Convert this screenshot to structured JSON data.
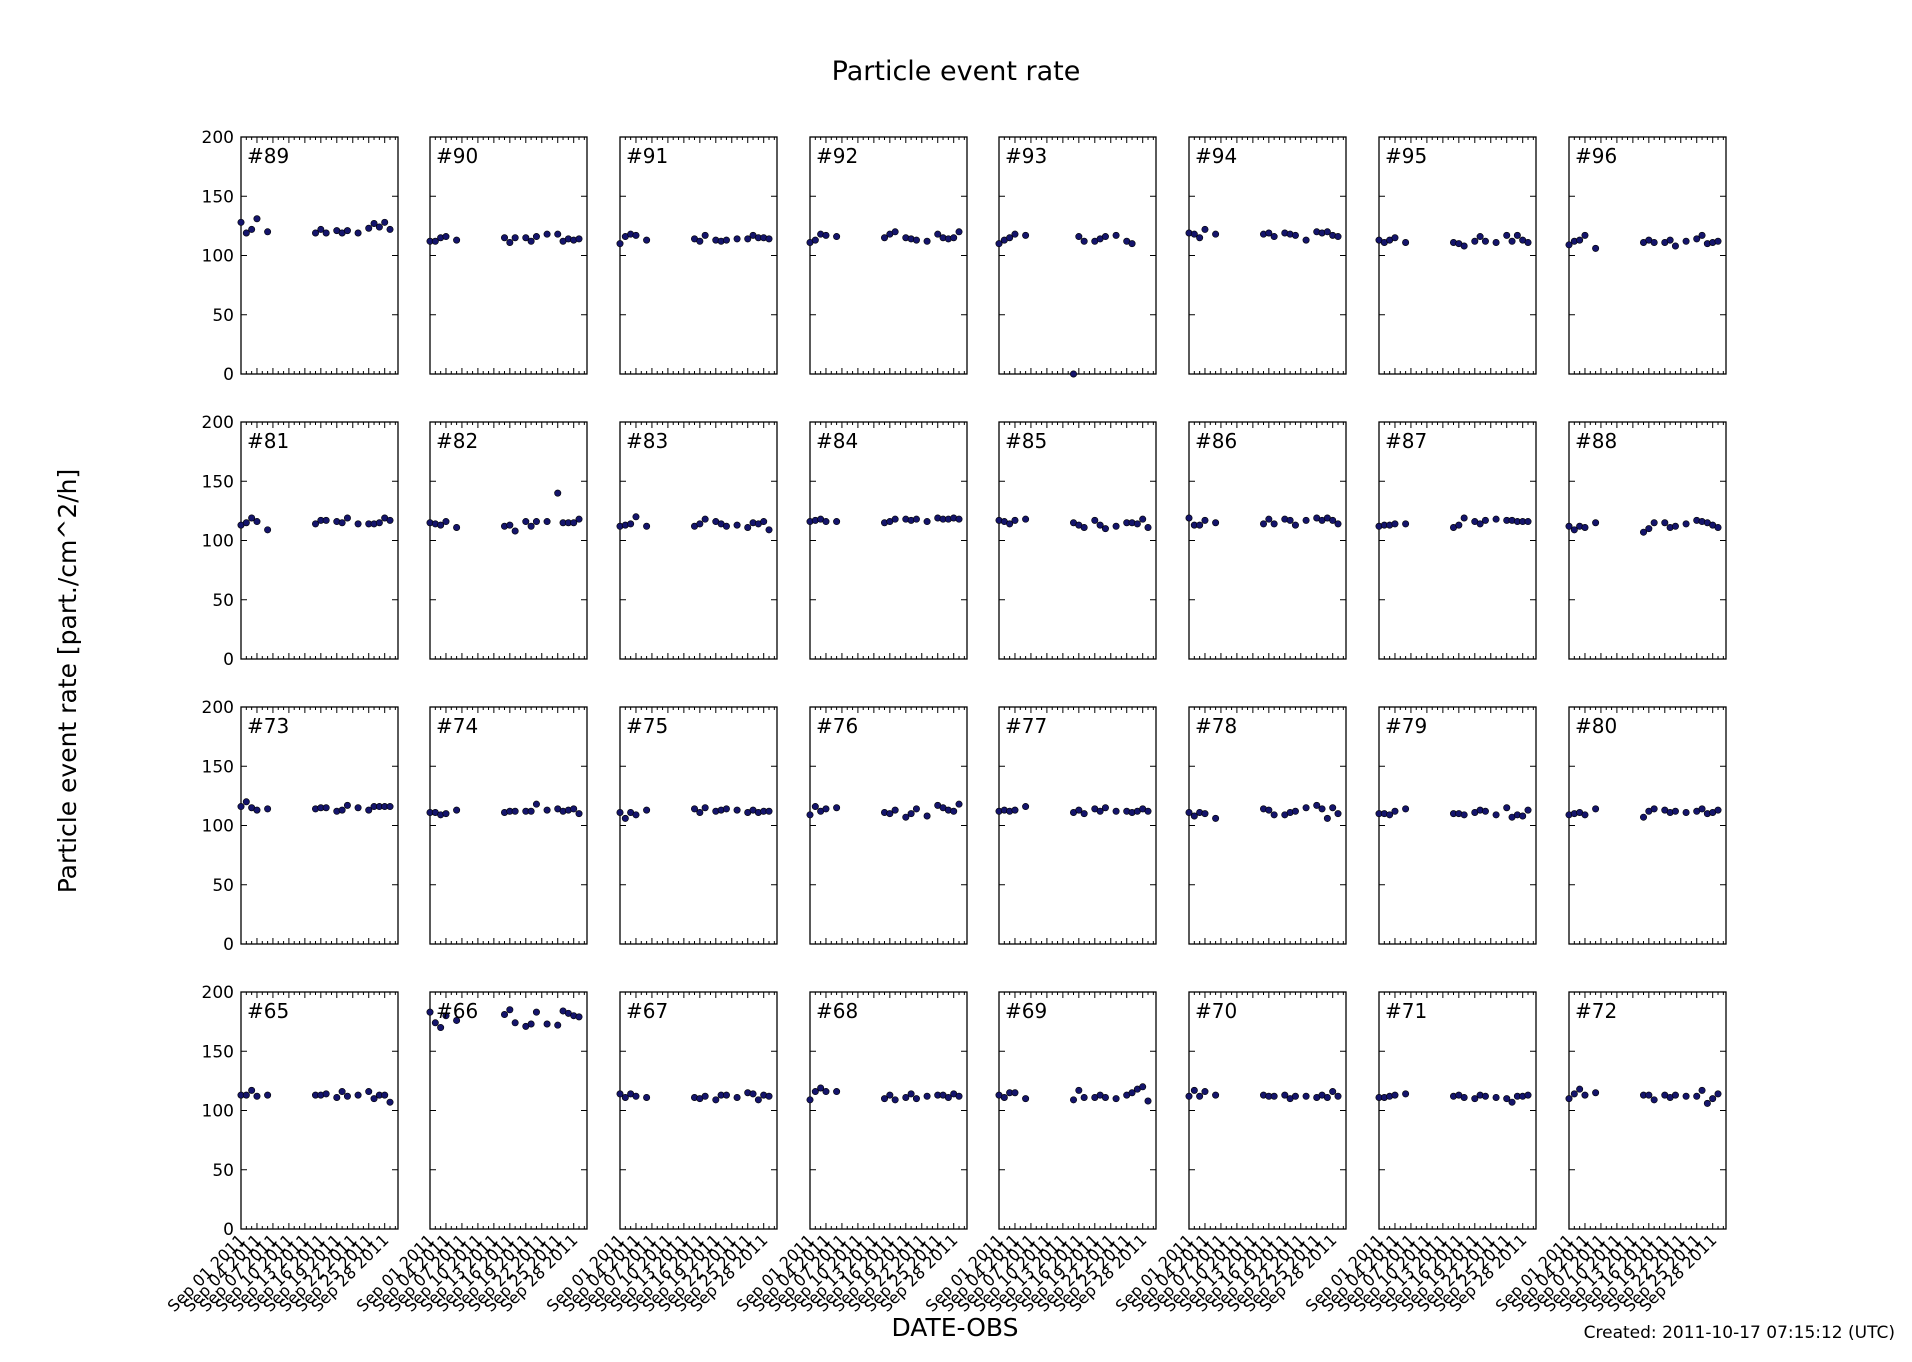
{
  "chart_data": {
    "type": "scatter",
    "title": "Particle event rate",
    "xlabel": "DATE-OBS",
    "ylabel": "Particle event rate [part./cm^2/h]",
    "footer": "Created: 2011-10-17 07:15:12 (UTC)",
    "ylim": [
      0,
      200
    ],
    "yticks": [
      0,
      50,
      100,
      150,
      200
    ],
    "xlim_day": [
      1,
      30.5
    ],
    "xtick_labels": [
      "Sep 01 2011",
      "Sep 04 2011",
      "Sep 07 2011",
      "Sep 10 2011",
      "Sep 13 2011",
      "Sep 16 2011",
      "Sep 19 2011",
      "Sep 22 2011",
      "Sep 25 2011",
      "Sep 28 2011"
    ],
    "xtick_days": [
      1,
      4,
      7,
      10,
      13,
      16,
      19,
      22,
      25,
      28
    ],
    "day": [
      1,
      2,
      3,
      4,
      6,
      14,
      15,
      16,
      17,
      19,
      20,
      21,
      23,
      25,
      26,
      27,
      28,
      29
    ],
    "grid": false,
    "marker_color": "#14146b",
    "panels": [
      {
        "label": "#89",
        "values": [
          128,
          119,
          122,
          131,
          120,
          null,
          119,
          122,
          119,
          121,
          119,
          121,
          119,
          123,
          127,
          124,
          128,
          122
        ]
      },
      {
        "label": "#90",
        "values": [
          112,
          112,
          115,
          116,
          113,
          null,
          115,
          111,
          115,
          115,
          112,
          116,
          118,
          118,
          112,
          114,
          113,
          114
        ]
      },
      {
        "label": "#91",
        "values": [
          110,
          116,
          118,
          117,
          113,
          null,
          114,
          112,
          117,
          113,
          112,
          113,
          114,
          114,
          117,
          115,
          115,
          114
        ]
      },
      {
        "label": "#92",
        "values": [
          111,
          113,
          118,
          117,
          116,
          null,
          115,
          118,
          120,
          115,
          114,
          113,
          112,
          118,
          115,
          114,
          115,
          120
        ]
      },
      {
        "label": "#93",
        "values": [
          110,
          113,
          115,
          118,
          117,
          null,
          0,
          116,
          112,
          112,
          114,
          116,
          117,
          112,
          110,
          null,
          null,
          null
        ]
      },
      {
        "label": "#94",
        "values": [
          119,
          118,
          115,
          122,
          118,
          null,
          118,
          119,
          116,
          119,
          118,
          117,
          113,
          120,
          119,
          120,
          117,
          116
        ]
      },
      {
        "label": "#95",
        "values": [
          113,
          111,
          113,
          115,
          111,
          null,
          111,
          110,
          108,
          112,
          116,
          112,
          111,
          117,
          112,
          117,
          113,
          111
        ]
      },
      {
        "label": "#96",
        "values": [
          109,
          112,
          113,
          117,
          106,
          null,
          111,
          113,
          111,
          111,
          113,
          108,
          112,
          114,
          117,
          110,
          111,
          112
        ]
      },
      {
        "label": "#81",
        "values": [
          113,
          115,
          119,
          116,
          109,
          null,
          114,
          117,
          117,
          116,
          115,
          119,
          114,
          114,
          114,
          115,
          119,
          117
        ]
      },
      {
        "label": "#82",
        "values": [
          115,
          114,
          113,
          116,
          111,
          null,
          112,
          113,
          108,
          116,
          112,
          116,
          116,
          140,
          115,
          115,
          115,
          118
        ]
      },
      {
        "label": "#83",
        "values": [
          112,
          113,
          114,
          120,
          112,
          null,
          112,
          114,
          118,
          116,
          114,
          112,
          113,
          111,
          115,
          114,
          116,
          109
        ]
      },
      {
        "label": "#84",
        "values": [
          116,
          117,
          118,
          116,
          116,
          null,
          115,
          116,
          118,
          118,
          117,
          118,
          116,
          119,
          118,
          118,
          119,
          118
        ]
      },
      {
        "label": "#85",
        "values": [
          117,
          116,
          114,
          117,
          118,
          null,
          115,
          113,
          111,
          117,
          113,
          110,
          112,
          115,
          115,
          114,
          118,
          111
        ]
      },
      {
        "label": "#86",
        "values": [
          119,
          113,
          113,
          117,
          115,
          null,
          114,
          118,
          114,
          118,
          117,
          113,
          117,
          119,
          117,
          119,
          117,
          114
        ]
      },
      {
        "label": "#87",
        "values": [
          112,
          113,
          113,
          114,
          114,
          null,
          111,
          113,
          119,
          116,
          114,
          117,
          118,
          117,
          117,
          116,
          116,
          116
        ]
      },
      {
        "label": "#88",
        "values": [
          112,
          109,
          112,
          111,
          115,
          null,
          107,
          110,
          115,
          115,
          111,
          112,
          114,
          117,
          116,
          115,
          113,
          111
        ]
      },
      {
        "label": "#73",
        "values": [
          116,
          120,
          115,
          113,
          114,
          null,
          114,
          115,
          115,
          112,
          113,
          117,
          115,
          113,
          116,
          116,
          116,
          116
        ]
      },
      {
        "label": "#74",
        "values": [
          111,
          111,
          109,
          110,
          113,
          null,
          111,
          112,
          112,
          112,
          112,
          118,
          113,
          114,
          112,
          113,
          114,
          110
        ]
      },
      {
        "label": "#75",
        "values": [
          111,
          106,
          111,
          109,
          113,
          null,
          114,
          111,
          115,
          112,
          113,
          114,
          113,
          111,
          113,
          111,
          112,
          112
        ]
      },
      {
        "label": "#76",
        "values": [
          109,
          116,
          112,
          114,
          115,
          null,
          111,
          110,
          113,
          107,
          110,
          114,
          108,
          117,
          115,
          113,
          112,
          118
        ]
      },
      {
        "label": "#77",
        "values": [
          112,
          113,
          112,
          113,
          116,
          null,
          111,
          113,
          110,
          114,
          112,
          115,
          112,
          112,
          111,
          112,
          114,
          112
        ]
      },
      {
        "label": "#78",
        "values": [
          111,
          108,
          111,
          110,
          106,
          null,
          114,
          113,
          109,
          109,
          111,
          112,
          115,
          117,
          114,
          106,
          115,
          110
        ]
      },
      {
        "label": "#79",
        "values": [
          110,
          110,
          109,
          112,
          114,
          null,
          110,
          110,
          109,
          111,
          113,
          112,
          109,
          115,
          107,
          109,
          108,
          113
        ]
      },
      {
        "label": "#80",
        "values": [
          109,
          110,
          111,
          109,
          114,
          null,
          107,
          112,
          114,
          113,
          111,
          112,
          111,
          112,
          114,
          110,
          111,
          113
        ]
      },
      {
        "label": "#65",
        "values": [
          113,
          113,
          117,
          112,
          113,
          null,
          113,
          113,
          114,
          111,
          116,
          112,
          113,
          116,
          110,
          113,
          113,
          107
        ]
      },
      {
        "label": "#66",
        "values": [
          183,
          174,
          170,
          180,
          176,
          null,
          181,
          185,
          174,
          171,
          173,
          183,
          173,
          172,
          184,
          182,
          180,
          179
        ]
      },
      {
        "label": "#67",
        "values": [
          114,
          111,
          114,
          112,
          111,
          null,
          111,
          110,
          112,
          109,
          113,
          113,
          111,
          115,
          114,
          109,
          113,
          112
        ]
      },
      {
        "label": "#68",
        "values": [
          109,
          116,
          119,
          116,
          116,
          null,
          110,
          113,
          109,
          111,
          114,
          110,
          112,
          113,
          113,
          111,
          114,
          112
        ]
      },
      {
        "label": "#69",
        "values": [
          113,
          111,
          115,
          115,
          110,
          null,
          109,
          117,
          111,
          111,
          113,
          111,
          110,
          113,
          115,
          118,
          120,
          108
        ]
      },
      {
        "label": "#70",
        "values": [
          112,
          117,
          112,
          116,
          113,
          null,
          113,
          112,
          112,
          113,
          110,
          112,
          112,
          111,
          113,
          111,
          116,
          112
        ]
      },
      {
        "label": "#71",
        "values": [
          111,
          111,
          112,
          113,
          114,
          null,
          112,
          113,
          111,
          110,
          113,
          112,
          111,
          110,
          107,
          112,
          112,
          113
        ]
      },
      {
        "label": "#72",
        "values": [
          110,
          114,
          118,
          113,
          115,
          null,
          113,
          113,
          109,
          113,
          111,
          113,
          112,
          112,
          117,
          106,
          110,
          114
        ]
      }
    ]
  }
}
